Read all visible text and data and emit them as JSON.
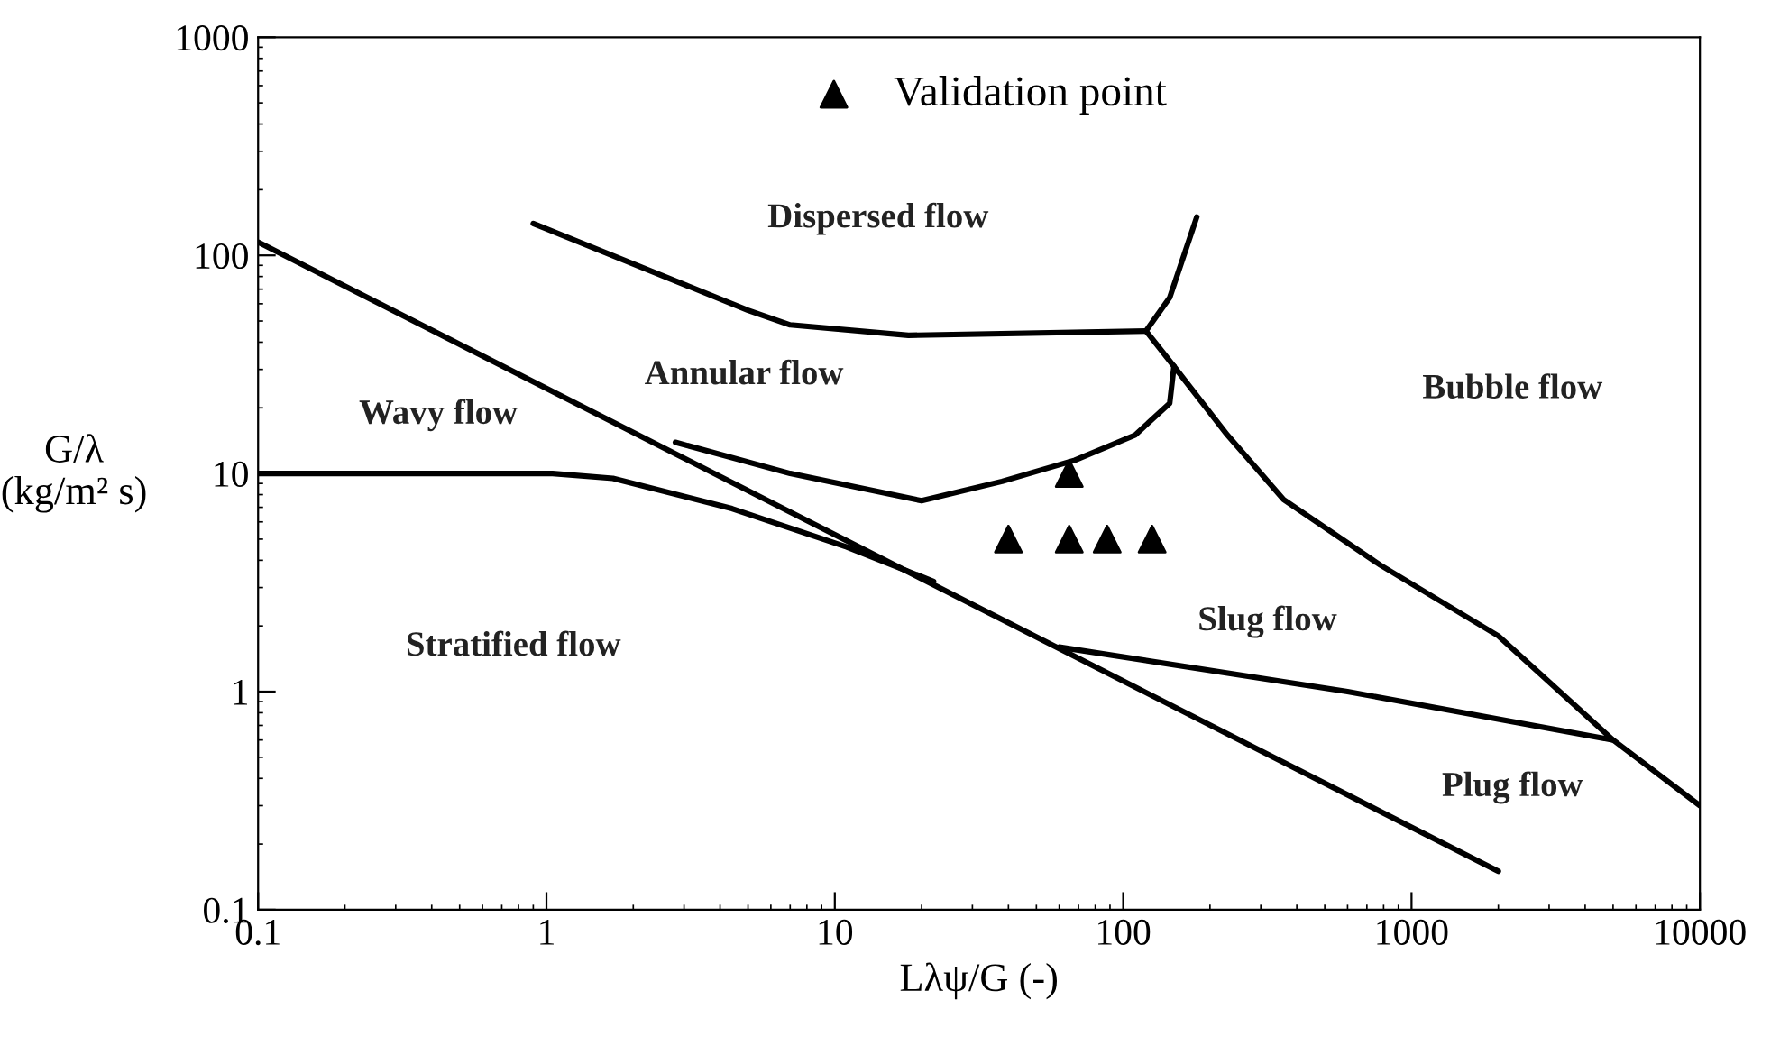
{
  "chart_data": {
    "type": "line",
    "log": "xy",
    "xlabel": "Lλψ/G (-)",
    "ylabel": "G/λ\n(kg/m² s)",
    "xlim": [
      0.1,
      10000
    ],
    "ylim": [
      0.1,
      1000
    ],
    "xticks": [
      0.1,
      1,
      10,
      100,
      1000,
      10000
    ],
    "yticks": [
      0.1,
      1,
      10,
      100,
      1000
    ],
    "grid": false,
    "legend": "top",
    "marker": "none",
    "line_style": "solid",
    "series": [
      {
        "color": "#000000",
        "x": [
          0.1,
          2000
        ],
        "values": [
          115,
          0.15
        ]
      },
      {
        "color": "#000000",
        "x": [
          0.9,
          5,
          7,
          18,
          120
        ],
        "values": [
          140,
          56,
          48,
          43,
          45
        ]
      },
      {
        "color": "#000000",
        "x": [
          180,
          145,
          120,
          150,
          230,
          360,
          780,
          2000,
          5000,
          10000
        ],
        "values": [
          150,
          64,
          45,
          31,
          15,
          7.6,
          3.8,
          1.8,
          0.6,
          0.3
        ]
      },
      {
        "color": "#000000",
        "x": [
          2.8,
          7,
          20,
          38,
          68,
          110,
          145,
          150
        ],
        "values": [
          13.9,
          10,
          7.5,
          9.2,
          11.5,
          15,
          21,
          31
        ]
      },
      {
        "color": "#000000",
        "x": [
          0.1,
          1.05,
          1.7,
          4.4,
          11,
          22
        ],
        "values": [
          10,
          10,
          9.5,
          6.9,
          4.6,
          3.2
        ]
      },
      {
        "color": "#000000",
        "x": [
          60,
          600,
          5000
        ],
        "values": [
          1.6,
          1.0,
          0.6
        ]
      },
      {
        "type": "scatter",
        "name": "Validation point",
        "marker": "triangle",
        "color": "#000000",
        "x": [
          65,
          40,
          65,
          88,
          126
        ],
        "values": [
          10,
          5,
          5,
          5,
          5
        ]
      }
    ],
    "annotations": [
      "Dispersed flow",
      "Annular flow",
      "Wavy flow",
      "Bubble flow",
      "Stratified flow",
      "Slug flow",
      "Plug flow"
    ]
  }
}
